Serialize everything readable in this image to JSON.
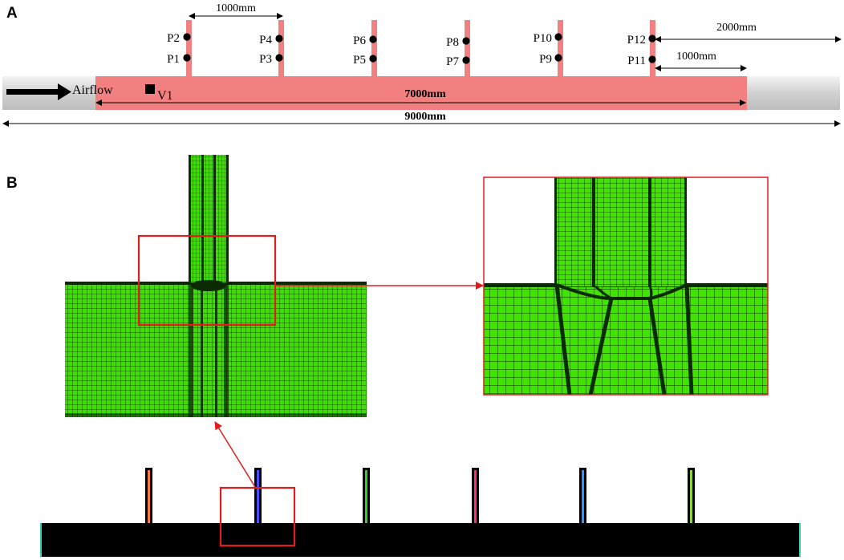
{
  "panel_a": {
    "letter": "A",
    "airflow_label": "Airflow",
    "velocity_probe_label": "V1",
    "dim_spacing": "1000mm",
    "dim_outlet_far": "2000mm",
    "dim_outlet_near": "1000mm",
    "dim_pink": "7000mm",
    "dim_total": "9000mm",
    "probes": [
      {
        "upper": "P2",
        "lower": "P1"
      },
      {
        "upper": "P4",
        "lower": "P3"
      },
      {
        "upper": "P6",
        "lower": "P5"
      },
      {
        "upper": "P8",
        "lower": "P7"
      },
      {
        "upper": "P10",
        "lower": "P9"
      },
      {
        "upper": "P12",
        "lower": "P11"
      }
    ]
  },
  "panel_b": {
    "letter": "B"
  },
  "colors": {
    "duct_pink": "#f28080",
    "duct_grey": "#d6d6d6",
    "mesh_green": "#39e600",
    "mesh_line": "#0d2a00",
    "highlight_red": "#e21b1b",
    "solid_black": "#000000"
  }
}
